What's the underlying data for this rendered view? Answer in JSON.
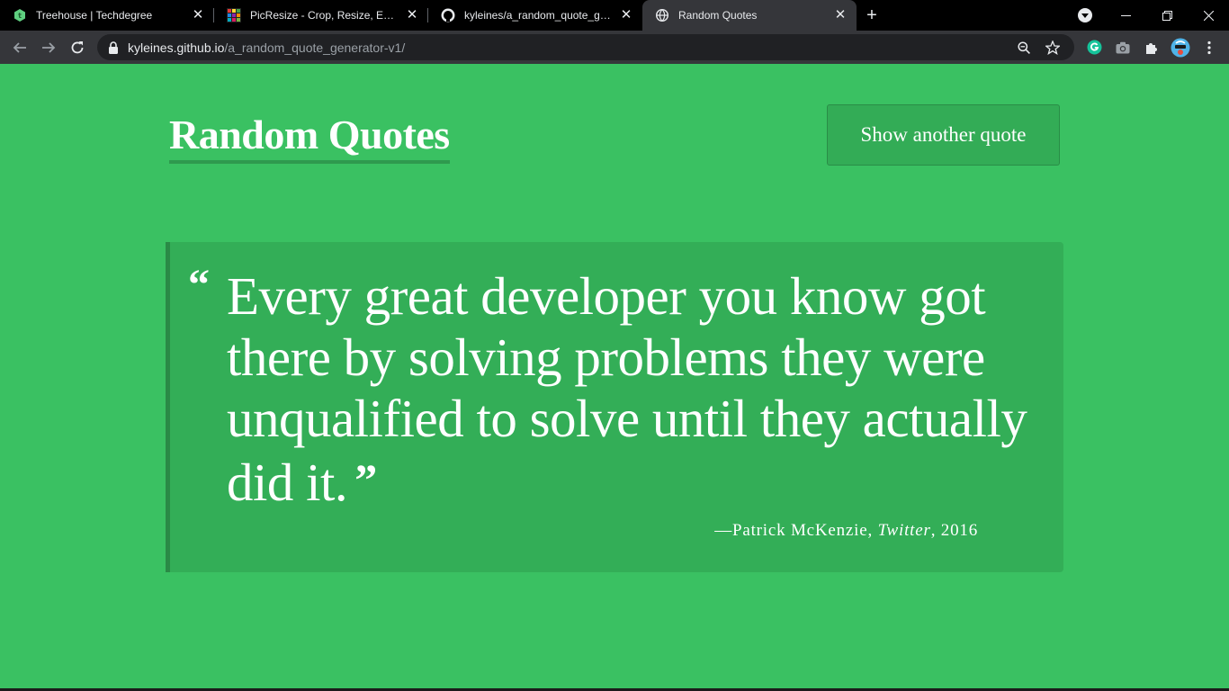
{
  "browser": {
    "tabs": [
      {
        "title": "Treehouse | Techdegree",
        "icon": "treehouse-icon",
        "active": false
      },
      {
        "title": "PicResize - Crop, Resize, Edit images",
        "icon": "picresize-icon",
        "active": false
      },
      {
        "title": "kyleines/a_random_quote_generator",
        "icon": "github-icon",
        "active": false
      },
      {
        "title": "Random Quotes",
        "icon": "globe-icon",
        "active": true
      }
    ],
    "new_tab_label": "+",
    "address": {
      "host": "kyleines.github.io",
      "path": "/a_random_quote_generator-v1/"
    }
  },
  "page": {
    "title": "Random Quotes",
    "button_label": "Show another quote",
    "quote": {
      "open_mark": "“",
      "text": "Every great developer you know got there by solving problems they were unqualified to solve until they actually did it.",
      "close_mark": "”",
      "source": "—Patrick McKenzie, ",
      "citation": "Twitter",
      "year_sep": ", ",
      "year": "2016"
    }
  },
  "colors": {
    "page_bg": "#3ac162",
    "quote_bg": "#33ae57",
    "accent_border": "#2a8a46"
  }
}
